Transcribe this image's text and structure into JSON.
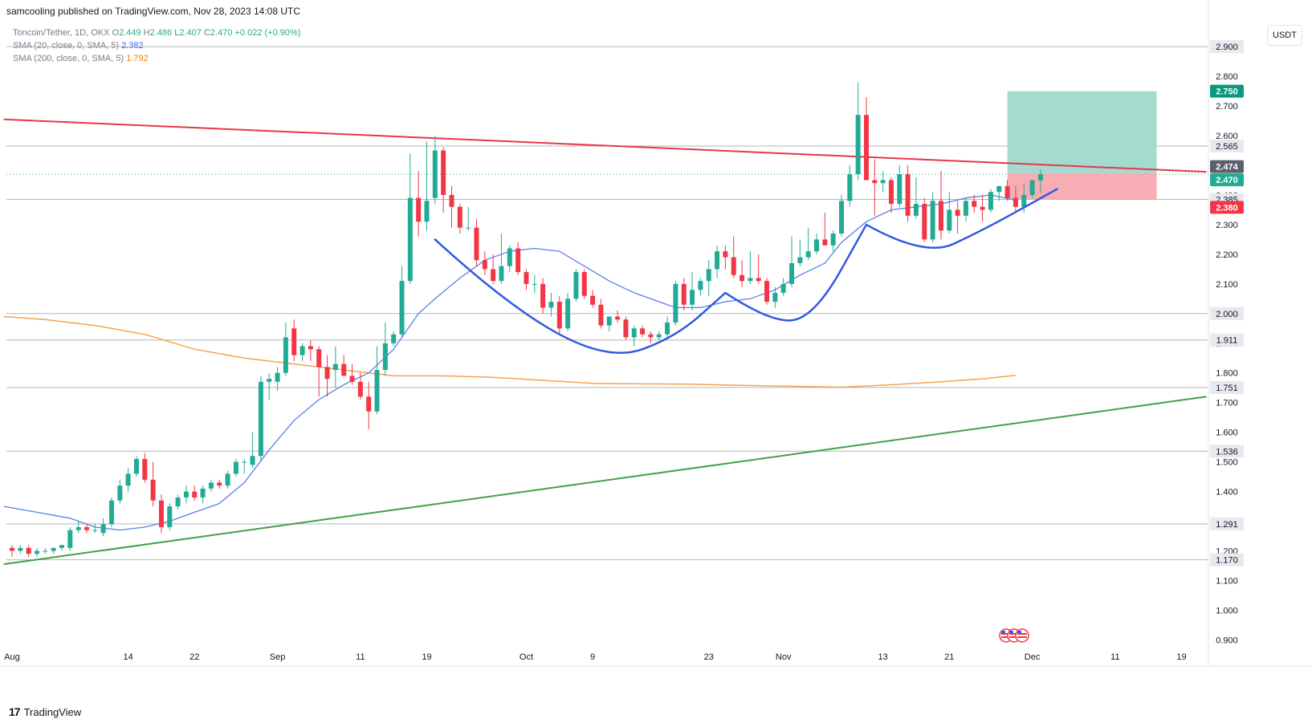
{
  "publisher": "samcooling published on TradingView.com, Nov 28, 2023 14:08 UTC",
  "legend": {
    "symbol": "Toncoin/Tether, 1D, OKX",
    "o_label": "O",
    "o": "2.449",
    "h_label": "H",
    "h": "2.486",
    "l_label": "L",
    "l": "2.407",
    "c_label": "C",
    "c": "2.470",
    "change": "+0.022 (+0.90%)",
    "sma20_label": "SMA (20, close, 0, SMA, 5)",
    "sma20_value": "2.382",
    "sma200_label": "SMA (200, close, 0, SMA, 5)",
    "sma200_value": "1.792"
  },
  "unit_button": "USDT",
  "footer_logo": "TradingView",
  "footer_logo_glyph": "17",
  "colors": {
    "up": "#22ab94",
    "down": "#f23645",
    "sma20": "#5b7fe8",
    "sma200": "#f7a14f",
    "resistance": "#e8364a",
    "support": "#43a047",
    "pattern": "#2f5be3",
    "target_zone": "#9ed9cc",
    "stop_zone": "#f7a9b0",
    "level_line": "#b2b5be"
  },
  "chart_data": {
    "type": "candlestick",
    "y_axis_ticks": [
      "0.900",
      "1.000",
      "1.100",
      "1.200",
      "1.300",
      "1.400",
      "1.500",
      "1.600",
      "1.700",
      "1.800",
      "1.900",
      "2.000",
      "2.100",
      "2.200",
      "2.300",
      "2.400",
      "2.500",
      "2.600",
      "2.700",
      "2.800",
      "2.900"
    ],
    "ylim": [
      0.855,
      2.96
    ],
    "x_axis_ticks": [
      {
        "label": "Aug",
        "day": 0
      },
      {
        "label": "14",
        "day": 14
      },
      {
        "label": "22",
        "day": 22
      },
      {
        "label": "Sep",
        "day": 32
      },
      {
        "label": "11",
        "day": 42
      },
      {
        "label": "19",
        "day": 50
      },
      {
        "label": "Oct",
        "day": 62
      },
      {
        "label": "9",
        "day": 70
      },
      {
        "label": "23",
        "day": 84
      },
      {
        "label": "Nov",
        "day": 93
      },
      {
        "label": "13",
        "day": 105
      },
      {
        "label": "21",
        "day": 113
      },
      {
        "label": "Dec",
        "day": 123
      },
      {
        "label": "11",
        "day": 133
      },
      {
        "label": "19",
        "day": 141
      }
    ],
    "price_levels": [
      {
        "value": 2.9,
        "label": "2.900"
      },
      {
        "value": 2.565,
        "label": "2.565"
      },
      {
        "value": 2.385,
        "label": "2.385"
      },
      {
        "value": 2.0,
        "label": "2.000"
      },
      {
        "value": 1.911,
        "label": "1.911"
      },
      {
        "value": 1.751,
        "label": "1.751"
      },
      {
        "value": 1.536,
        "label": "1.536"
      },
      {
        "value": 1.291,
        "label": "1.291"
      },
      {
        "value": 1.17,
        "label": "1.170"
      }
    ],
    "badges": [
      {
        "value": 2.75,
        "label": "2.750",
        "color": "#089981"
      },
      {
        "value": 2.474,
        "label": "2.474",
        "color": "#5d606b"
      },
      {
        "value": 2.47,
        "label": "2.470",
        "color": "#22ab94"
      },
      {
        "value": 2.38,
        "label": "2.380",
        "color": "#f23645"
      }
    ],
    "current_price": 2.47,
    "position": {
      "entry": 2.474,
      "target": 2.75,
      "stop": 2.385,
      "start_day": 120,
      "end_day": 138
    },
    "resistance_line": {
      "start": {
        "day": -1,
        "price": 2.655
      },
      "end": {
        "day": 144,
        "price": 2.478
      }
    },
    "support_line": {
      "start": {
        "day": -1,
        "price": 1.155
      },
      "end": {
        "day": 144,
        "price": 1.72
      }
    },
    "cup_and_handle": [
      {
        "day": 51,
        "price": 2.25
      },
      {
        "day": 60,
        "price": 2.02
      },
      {
        "day": 72,
        "price": 1.84
      },
      {
        "day": 80,
        "price": 1.92
      },
      {
        "day": 86,
        "price": 2.07
      },
      {
        "day": 92,
        "price": 1.96
      },
      {
        "day": 97,
        "price": 2.0
      },
      {
        "day": 103,
        "price": 2.3
      },
      {
        "day": 110,
        "price": 2.19
      },
      {
        "day": 117,
        "price": 2.28
      },
      {
        "day": 126,
        "price": 2.42
      }
    ],
    "sma20": [
      [
        -1,
        1.35
      ],
      [
        3,
        1.33
      ],
      [
        7,
        1.31
      ],
      [
        10,
        1.28
      ],
      [
        13,
        1.27
      ],
      [
        16,
        1.28
      ],
      [
        19,
        1.3
      ],
      [
        22,
        1.33
      ],
      [
        25,
        1.36
      ],
      [
        28,
        1.43
      ],
      [
        31,
        1.54
      ],
      [
        34,
        1.64
      ],
      [
        37,
        1.71
      ],
      [
        40,
        1.76
      ],
      [
        43,
        1.8
      ],
      [
        46,
        1.88
      ],
      [
        49,
        2.0
      ],
      [
        51,
        2.05
      ],
      [
        54,
        2.12
      ],
      [
        57,
        2.18
      ],
      [
        60,
        2.21
      ],
      [
        63,
        2.22
      ],
      [
        66,
        2.21
      ],
      [
        69,
        2.16
      ],
      [
        72,
        2.11
      ],
      [
        75,
        2.07
      ],
      [
        78,
        2.04
      ],
      [
        80,
        2.02
      ],
      [
        83,
        2.02
      ],
      [
        86,
        2.04
      ],
      [
        89,
        2.05
      ],
      [
        92,
        2.08
      ],
      [
        95,
        2.13
      ],
      [
        98,
        2.17
      ],
      [
        100,
        2.24
      ],
      [
        103,
        2.31
      ],
      [
        106,
        2.35
      ],
      [
        109,
        2.36
      ],
      [
        112,
        2.37
      ],
      [
        115,
        2.39
      ],
      [
        118,
        2.4
      ],
      [
        121,
        2.382
      ]
    ],
    "sma200": [
      [
        -1,
        1.99
      ],
      [
        4,
        1.98
      ],
      [
        10,
        1.96
      ],
      [
        16,
        1.93
      ],
      [
        22,
        1.88
      ],
      [
        28,
        1.85
      ],
      [
        34,
        1.83
      ],
      [
        40,
        1.81
      ],
      [
        46,
        1.79
      ],
      [
        52,
        1.79
      ],
      [
        58,
        1.785
      ],
      [
        64,
        1.775
      ],
      [
        70,
        1.765
      ],
      [
        76,
        1.763
      ],
      [
        82,
        1.762
      ],
      [
        88,
        1.758
      ],
      [
        94,
        1.755
      ],
      [
        100,
        1.752
      ],
      [
        106,
        1.76
      ],
      [
        112,
        1.77
      ],
      [
        117,
        1.78
      ],
      [
        121,
        1.792
      ]
    ],
    "candles": [
      [
        0,
        1.21,
        1.22,
        1.18,
        1.2
      ],
      [
        1,
        1.2,
        1.22,
        1.19,
        1.21
      ],
      [
        2,
        1.21,
        1.22,
        1.18,
        1.19
      ],
      [
        3,
        1.19,
        1.21,
        1.18,
        1.2
      ],
      [
        4,
        1.2,
        1.21,
        1.19,
        1.2
      ],
      [
        5,
        1.2,
        1.21,
        1.19,
        1.21
      ],
      [
        6,
        1.21,
        1.22,
        1.2,
        1.22
      ],
      [
        7,
        1.21,
        1.28,
        1.2,
        1.27
      ],
      [
        8,
        1.27,
        1.3,
        1.26,
        1.28
      ],
      [
        9,
        1.28,
        1.29,
        1.26,
        1.27
      ],
      [
        10,
        1.27,
        1.29,
        1.26,
        1.27
      ],
      [
        11,
        1.26,
        1.31,
        1.25,
        1.29
      ],
      [
        12,
        1.29,
        1.38,
        1.28,
        1.37
      ],
      [
        13,
        1.37,
        1.44,
        1.36,
        1.42
      ],
      [
        14,
        1.42,
        1.48,
        1.4,
        1.46
      ],
      [
        15,
        1.46,
        1.52,
        1.45,
        1.51
      ],
      [
        16,
        1.51,
        1.53,
        1.43,
        1.44
      ],
      [
        17,
        1.44,
        1.5,
        1.35,
        1.37
      ],
      [
        18,
        1.37,
        1.39,
        1.26,
        1.28
      ],
      [
        19,
        1.28,
        1.36,
        1.27,
        1.35
      ],
      [
        20,
        1.35,
        1.39,
        1.34,
        1.38
      ],
      [
        21,
        1.38,
        1.42,
        1.36,
        1.4
      ],
      [
        22,
        1.4,
        1.42,
        1.37,
        1.38
      ],
      [
        23,
        1.38,
        1.42,
        1.36,
        1.41
      ],
      [
        24,
        1.41,
        1.44,
        1.4,
        1.43
      ],
      [
        25,
        1.43,
        1.44,
        1.41,
        1.42
      ],
      [
        26,
        1.42,
        1.47,
        1.41,
        1.46
      ],
      [
        27,
        1.46,
        1.51,
        1.45,
        1.5
      ],
      [
        28,
        1.5,
        1.51,
        1.46,
        1.5
      ],
      [
        29,
        1.49,
        1.6,
        1.48,
        1.52
      ],
      [
        30,
        1.52,
        1.79,
        1.5,
        1.77
      ],
      [
        31,
        1.77,
        1.8,
        1.71,
        1.78
      ],
      [
        32,
        1.77,
        1.82,
        1.74,
        1.8
      ],
      [
        33,
        1.8,
        1.97,
        1.79,
        1.92
      ],
      [
        34,
        1.95,
        1.98,
        1.84,
        1.86
      ],
      [
        35,
        1.86,
        1.9,
        1.84,
        1.89
      ],
      [
        36,
        1.89,
        1.91,
        1.84,
        1.88
      ],
      [
        37,
        1.88,
        1.89,
        1.72,
        1.82
      ],
      [
        38,
        1.82,
        1.86,
        1.72,
        1.78
      ],
      [
        39,
        1.81,
        1.89,
        1.75,
        1.83
      ],
      [
        40,
        1.83,
        1.86,
        1.79,
        1.79
      ],
      [
        41,
        1.79,
        1.83,
        1.76,
        1.77
      ],
      [
        42,
        1.77,
        1.8,
        1.71,
        1.72
      ],
      [
        43,
        1.72,
        1.77,
        1.61,
        1.67
      ],
      [
        44,
        1.67,
        1.89,
        1.66,
        1.81
      ],
      [
        45,
        1.81,
        1.97,
        1.79,
        1.9
      ],
      [
        46,
        1.9,
        1.94,
        1.89,
        1.93
      ],
      [
        47,
        1.93,
        2.16,
        1.92,
        2.11
      ],
      [
        48,
        2.11,
        2.54,
        2.1,
        2.39
      ],
      [
        49,
        2.39,
        2.48,
        2.26,
        2.31
      ],
      [
        50,
        2.31,
        2.58,
        2.28,
        2.38
      ],
      [
        51,
        2.39,
        2.6,
        2.37,
        2.55
      ],
      [
        52,
        2.55,
        2.56,
        2.34,
        2.4
      ],
      [
        53,
        2.4,
        2.43,
        2.29,
        2.36
      ],
      [
        54,
        2.36,
        2.37,
        2.27,
        2.29
      ],
      [
        55,
        2.29,
        2.36,
        2.28,
        2.29
      ],
      [
        56,
        2.29,
        2.32,
        2.16,
        2.18
      ],
      [
        57,
        2.18,
        2.21,
        2.13,
        2.15
      ],
      [
        58,
        2.15,
        2.2,
        2.1,
        2.11
      ],
      [
        59,
        2.11,
        2.27,
        2.1,
        2.16
      ],
      [
        60,
        2.16,
        2.23,
        2.14,
        2.22
      ],
      [
        61,
        2.22,
        2.24,
        2.13,
        2.14
      ],
      [
        62,
        2.14,
        2.15,
        2.08,
        2.1
      ],
      [
        63,
        2.1,
        2.13,
        2.07,
        2.1
      ],
      [
        64,
        2.1,
        2.12,
        2.0,
        2.02
      ],
      [
        65,
        2.02,
        2.07,
        1.99,
        2.04
      ],
      [
        66,
        2.04,
        2.06,
        1.93,
        1.95
      ],
      [
        67,
        1.95,
        2.07,
        1.94,
        2.05
      ],
      [
        68,
        2.05,
        2.15,
        2.04,
        2.14
      ],
      [
        69,
        2.14,
        2.15,
        2.05,
        2.06
      ],
      [
        70,
        2.06,
        2.08,
        2.02,
        2.03
      ],
      [
        71,
        2.03,
        2.05,
        1.95,
        1.96
      ],
      [
        72,
        1.96,
        1.99,
        1.94,
        1.99
      ],
      [
        73,
        1.99,
        2.01,
        1.97,
        1.98
      ],
      [
        74,
        1.98,
        1.99,
        1.91,
        1.92
      ],
      [
        75,
        1.92,
        1.96,
        1.89,
        1.95
      ],
      [
        76,
        1.95,
        1.96,
        1.92,
        1.93
      ],
      [
        77,
        1.93,
        1.94,
        1.9,
        1.92
      ],
      [
        78,
        1.92,
        1.94,
        1.91,
        1.93
      ],
      [
        79,
        1.93,
        1.99,
        1.92,
        1.97
      ],
      [
        80,
        1.97,
        2.11,
        1.96,
        2.1
      ],
      [
        81,
        2.1,
        2.12,
        2.01,
        2.03
      ],
      [
        82,
        2.03,
        2.14,
        2.01,
        2.08
      ],
      [
        83,
        2.08,
        2.12,
        2.06,
        2.11
      ],
      [
        84,
        2.11,
        2.18,
        2.06,
        2.15
      ],
      [
        85,
        2.15,
        2.23,
        2.12,
        2.21
      ],
      [
        86,
        2.21,
        2.23,
        2.15,
        2.19
      ],
      [
        87,
        2.19,
        2.26,
        2.12,
        2.13
      ],
      [
        88,
        2.13,
        2.18,
        2.09,
        2.11
      ],
      [
        89,
        2.11,
        2.21,
        2.1,
        2.12
      ],
      [
        90,
        2.12,
        2.2,
        2.1,
        2.11
      ],
      [
        91,
        2.11,
        2.12,
        2.03,
        2.04
      ],
      [
        92,
        2.04,
        2.09,
        2.02,
        2.07
      ],
      [
        93,
        2.07,
        2.12,
        2.06,
        2.1
      ],
      [
        94,
        2.1,
        2.26,
        2.09,
        2.17
      ],
      [
        95,
        2.17,
        2.25,
        2.16,
        2.19
      ],
      [
        96,
        2.19,
        2.29,
        2.18,
        2.21
      ],
      [
        97,
        2.21,
        2.27,
        2.2,
        2.25
      ],
      [
        98,
        2.25,
        2.34,
        2.23,
        2.23
      ],
      [
        99,
        2.23,
        2.28,
        2.21,
        2.27
      ],
      [
        100,
        2.27,
        2.4,
        2.26,
        2.38
      ],
      [
        101,
        2.38,
        2.5,
        2.36,
        2.47
      ],
      [
        102,
        2.47,
        2.78,
        2.45,
        2.67
      ],
      [
        103,
        2.67,
        2.73,
        2.46,
        2.45
      ],
      [
        104,
        2.45,
        2.52,
        2.33,
        2.44
      ],
      [
        105,
        2.44,
        2.48,
        2.41,
        2.45
      ],
      [
        106,
        2.45,
        2.46,
        2.34,
        2.37
      ],
      [
        107,
        2.37,
        2.5,
        2.36,
        2.47
      ],
      [
        108,
        2.47,
        2.5,
        2.31,
        2.33
      ],
      [
        109,
        2.33,
        2.46,
        2.32,
        2.37
      ],
      [
        110,
        2.37,
        2.39,
        2.24,
        2.25
      ],
      [
        111,
        2.25,
        2.41,
        2.24,
        2.38
      ],
      [
        112,
        2.38,
        2.48,
        2.25,
        2.28
      ],
      [
        113,
        2.28,
        2.41,
        2.27,
        2.35
      ],
      [
        114,
        2.35,
        2.38,
        2.27,
        2.33
      ],
      [
        115,
        2.33,
        2.39,
        2.31,
        2.38
      ],
      [
        116,
        2.38,
        2.4,
        2.34,
        2.36
      ],
      [
        117,
        2.36,
        2.4,
        2.31,
        2.35
      ],
      [
        118,
        2.35,
        2.42,
        2.34,
        2.41
      ],
      [
        119,
        2.41,
        2.43,
        2.38,
        2.43
      ],
      [
        120,
        2.43,
        2.45,
        2.38,
        2.39
      ],
      [
        121,
        2.39,
        2.43,
        2.34,
        2.36
      ],
      [
        122,
        2.36,
        2.44,
        2.34,
        2.4
      ],
      [
        123,
        2.4,
        2.45,
        2.39,
        2.45
      ],
      [
        124,
        2.449,
        2.486,
        2.407,
        2.47
      ]
    ]
  }
}
